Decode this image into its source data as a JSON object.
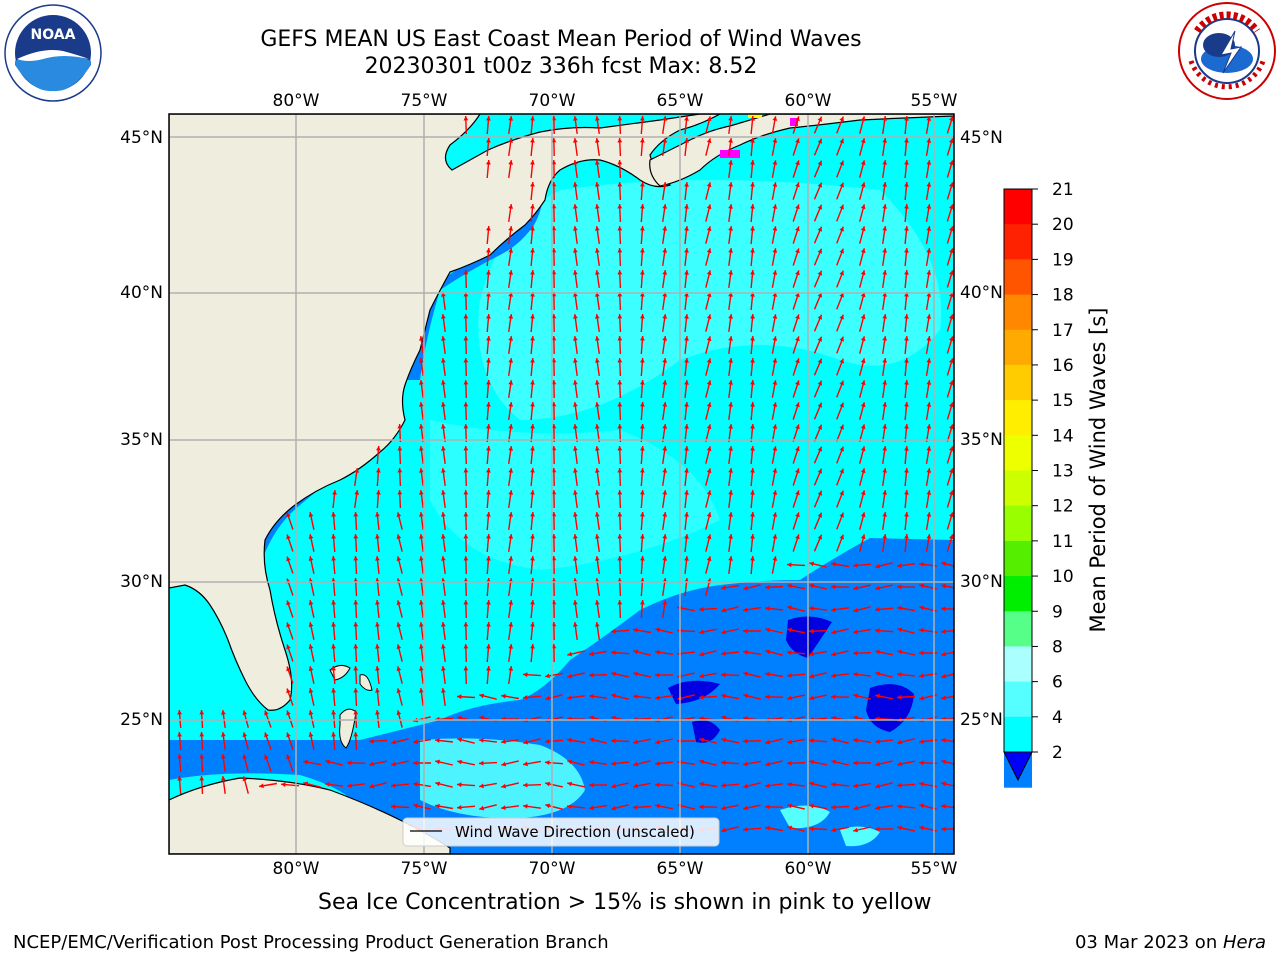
{
  "header": {
    "title": "GEFS MEAN US East Coast Mean Period of Wind Waves",
    "subtitle": "20230301 t00z 336h fcst   Max: 8.52"
  },
  "logos": {
    "left": {
      "icon": "noaa-logo-icon",
      "text": "NOAA"
    },
    "right": {
      "icon": "national-weather-service-logo-icon"
    }
  },
  "map": {
    "lon_labels": [
      "80°W",
      "75°W",
      "70°W",
      "65°W",
      "60°W",
      "55°W"
    ],
    "lat_labels": [
      "45°N",
      "40°N",
      "35°N",
      "30°N",
      "25°N"
    ],
    "legend_label": "Wind Wave Direction (unscaled)",
    "colors": {
      "land": "#efedde",
      "cyan": "#00ffff",
      "light_cyan": "#55ffff",
      "blue": "#0080ff",
      "deep_blue": "#0000f0",
      "arrow": "#ff0000",
      "ice": "#ff00ff",
      "grid": "#b0b0b0"
    }
  },
  "colorbar": {
    "label": "Mean Period of Wind Waves [s]",
    "tick_labels": [
      "21",
      "20",
      "19",
      "18",
      "17",
      "16",
      "15",
      "14",
      "13",
      "12",
      "11",
      "10",
      "9",
      "8",
      "6",
      "4",
      "2"
    ],
    "colors": [
      "#ff0000",
      "#ff2200",
      "#ff5500",
      "#ff8800",
      "#ffaa00",
      "#ffcc00",
      "#ffee00",
      "#eeff00",
      "#ccff00",
      "#99ff00",
      "#55ee00",
      "#00ee00",
      "#55ff88",
      "#aaffff",
      "#55ffff",
      "#00ffff",
      "#0080ff"
    ],
    "extend_color": "#0000ff"
  },
  "caption": "Sea Ice Concentration > 15% is shown in pink to yellow",
  "footer": {
    "left": "NCEP/EMC/Verification Post Processing Product Generation Branch",
    "right_prefix": "03 Mar 2023 on ",
    "right_machine": "Hera"
  }
}
